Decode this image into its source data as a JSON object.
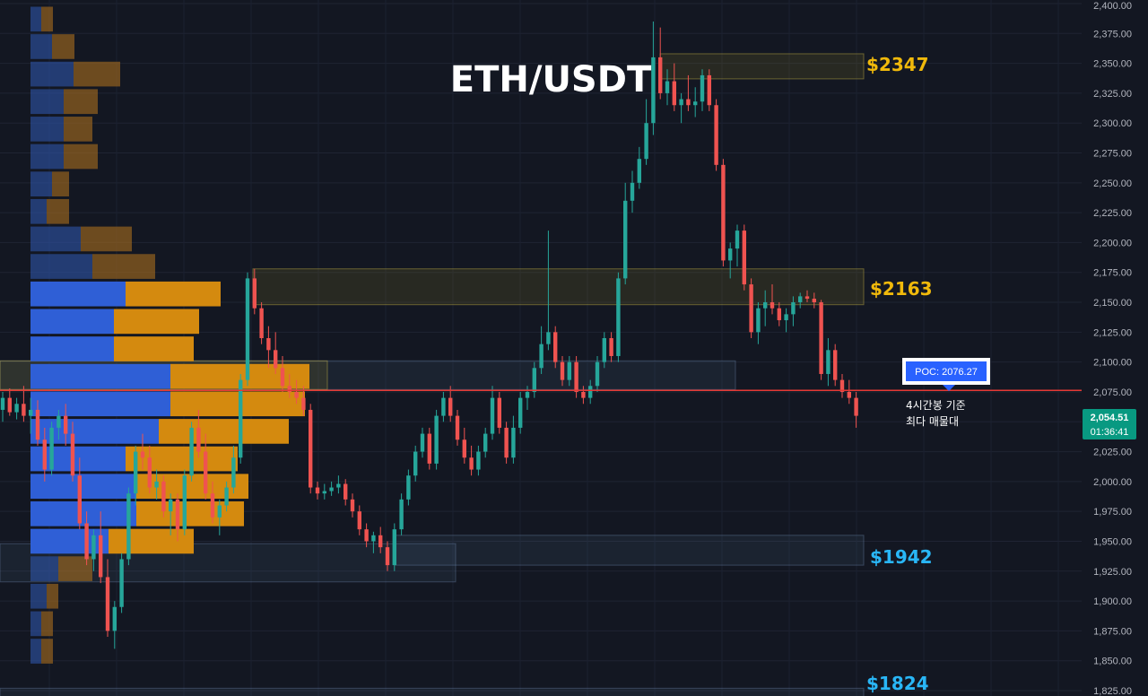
{
  "chart_data": {
    "type": "candlestick",
    "title": "ETH/USDT",
    "y_axis": {
      "min": 1825,
      "max": 2400,
      "ticks": [
        "2,400.00",
        "2,375.00",
        "2,350.00",
        "2,325.00",
        "2,300.00",
        "2,275.00",
        "2,250.00",
        "2,225.00",
        "2,200.00",
        "2,175.00",
        "2,150.00",
        "2,125.00",
        "2,100.00",
        "2,075.00",
        "2,050.00",
        "2,025.00",
        "2,000.00",
        "1,975.00",
        "1,950.00",
        "1,925.00",
        "1,900.00",
        "1,875.00",
        "1,850.00",
        "1,825.00"
      ]
    },
    "grid": true,
    "current_price": {
      "value": 2054.51,
      "label": "2,054.51",
      "countdown": "01:36:41",
      "color": "#089981"
    },
    "poc": {
      "value": 2076.27,
      "label": "POC: 2076.27",
      "note_line1": "4시간봉 기준",
      "note_line2": "최다 매물대",
      "line_color": "#e53935",
      "box_color": "#2962ff"
    },
    "levels": [
      {
        "label": "$2347",
        "price": 2347,
        "color": "#f0b90b"
      },
      {
        "label": "$2163",
        "price": 2163,
        "color": "#f0b90b"
      },
      {
        "label": "$1942",
        "price": 1942,
        "color": "#29b6f6"
      },
      {
        "label": "$1824",
        "price": 1824,
        "color": "#29b6f6"
      }
    ],
    "zones": [
      {
        "top": 2358,
        "bottom": 2337,
        "kind": "supply"
      },
      {
        "top": 2178,
        "bottom": 2148,
        "kind": "supply"
      },
      {
        "top": 2101,
        "bottom": 2077,
        "kind": "blue"
      },
      {
        "top": 2101,
        "bottom": 2077,
        "kind": "supply"
      },
      {
        "top": 1955,
        "bottom": 1930,
        "kind": "blue"
      },
      {
        "top": 1948,
        "bottom": 1916,
        "kind": "blue"
      },
      {
        "top": 1827,
        "bottom": 1815,
        "kind": "blue"
      }
    ],
    "volume_profile": [
      {
        "price": 2387,
        "buy": 12,
        "sell": 13
      },
      {
        "price": 2364,
        "buy": 24,
        "sell": 25
      },
      {
        "price": 2341,
        "buy": 48,
        "sell": 52
      },
      {
        "price": 2318,
        "buy": 37,
        "sell": 38
      },
      {
        "price": 2295,
        "buy": 37,
        "sell": 32
      },
      {
        "price": 2272,
        "buy": 37,
        "sell": 38
      },
      {
        "price": 2249,
        "buy": 24,
        "sell": 19
      },
      {
        "price": 2226,
        "buy": 18,
        "sell": 25
      },
      {
        "price": 2203,
        "buy": 56,
        "sell": 57
      },
      {
        "price": 2180,
        "buy": 69,
        "sell": 70
      },
      {
        "price": 2157,
        "buy": 106,
        "sell": 106
      },
      {
        "price": 2134,
        "buy": 93,
        "sell": 95
      },
      {
        "price": 2111,
        "buy": 93,
        "sell": 89
      },
      {
        "price": 2088,
        "buy": 156,
        "sell": 155
      },
      {
        "price": 2065,
        "buy": 156,
        "sell": 150
      },
      {
        "price": 2042,
        "buy": 143,
        "sell": 145
      },
      {
        "price": 2019,
        "buy": 106,
        "sell": 125
      },
      {
        "price": 1996,
        "buy": 118,
        "sell": 125
      },
      {
        "price": 1973,
        "buy": 118,
        "sell": 120
      },
      {
        "price": 1950,
        "buy": 87,
        "sell": 95
      },
      {
        "price": 1927,
        "buy": 31,
        "sell": 38
      },
      {
        "price": 1904,
        "buy": 18,
        "sell": 13
      },
      {
        "price": 1881,
        "buy": 12,
        "sell": 13
      },
      {
        "price": 1858,
        "buy": 12,
        "sell": 13
      }
    ],
    "candles": [
      [
        2060,
        2075,
        2050,
        2070
      ],
      [
        2070,
        2078,
        2055,
        2058
      ],
      [
        2058,
        2070,
        2052,
        2065
      ],
      [
        2065,
        2080,
        2050,
        2055
      ],
      [
        2055,
        2070,
        2040,
        2060
      ],
      [
        2060,
        2068,
        2030,
        2035
      ],
      [
        2035,
        2045,
        2000,
        2010
      ],
      [
        2010,
        2050,
        2005,
        2045
      ],
      [
        2045,
        2060,
        2035,
        2055
      ],
      [
        2055,
        2065,
        2030,
        2040
      ],
      [
        2040,
        2050,
        2000,
        2005
      ],
      [
        2005,
        2020,
        1960,
        1965
      ],
      [
        1965,
        1975,
        1930,
        1935
      ],
      [
        1935,
        1960,
        1925,
        1955
      ],
      [
        1955,
        1975,
        1915,
        1920
      ],
      [
        1920,
        1935,
        1870,
        1875
      ],
      [
        1875,
        1900,
        1860,
        1895
      ],
      [
        1895,
        1940,
        1890,
        1935
      ],
      [
        1935,
        1995,
        1930,
        1990
      ],
      [
        1990,
        2030,
        1980,
        2025
      ],
      [
        2025,
        2040,
        2010,
        2020
      ],
      [
        2020,
        2030,
        1990,
        1995
      ],
      [
        1995,
        2010,
        1985,
        2000
      ],
      [
        2000,
        2005,
        1970,
        1975
      ],
      [
        1975,
        1990,
        1955,
        1985
      ],
      [
        1985,
        1990,
        1950,
        1960
      ],
      [
        1960,
        2010,
        1955,
        2005
      ],
      [
        2005,
        2050,
        2000,
        2045
      ],
      [
        2045,
        2060,
        2020,
        2025
      ],
      [
        2025,
        2040,
        1985,
        1990
      ],
      [
        1990,
        2000,
        1965,
        1970
      ],
      [
        1970,
        1985,
        1955,
        1980
      ],
      [
        1980,
        2000,
        1975,
        1995
      ],
      [
        1995,
        2030,
        1990,
        2020
      ],
      [
        2020,
        2090,
        2015,
        2085
      ],
      [
        2085,
        2175,
        2080,
        2170
      ],
      [
        2170,
        2178,
        2140,
        2145
      ],
      [
        2145,
        2150,
        2115,
        2120
      ],
      [
        2120,
        2130,
        2095,
        2110
      ],
      [
        2110,
        2125,
        2090,
        2095
      ],
      [
        2095,
        2105,
        2075,
        2080
      ],
      [
        2080,
        2090,
        2070,
        2075
      ],
      [
        2075,
        2085,
        2065,
        2070
      ],
      [
        2070,
        2080,
        2055,
        2060
      ],
      [
        2060,
        2065,
        1990,
        1995
      ],
      [
        1995,
        2000,
        1985,
        1990
      ],
      [
        1990,
        1998,
        1985,
        1992
      ],
      [
        1992,
        2000,
        1988,
        1995
      ],
      [
        1995,
        2005,
        1990,
        1998
      ],
      [
        1998,
        2002,
        1980,
        1985
      ],
      [
        1985,
        1990,
        1970,
        1975
      ],
      [
        1975,
        1980,
        1955,
        1960
      ],
      [
        1960,
        1965,
        1945,
        1950
      ],
      [
        1950,
        1958,
        1940,
        1955
      ],
      [
        1955,
        1962,
        1940,
        1945
      ],
      [
        1945,
        1950,
        1925,
        1930
      ],
      [
        1930,
        1965,
        1925,
        1960
      ],
      [
        1960,
        1990,
        1955,
        1985
      ],
      [
        1985,
        2010,
        1980,
        2005
      ],
      [
        2005,
        2030,
        2000,
        2025
      ],
      [
        2025,
        2045,
        2020,
        2040
      ],
      [
        2040,
        2045,
        2010,
        2015
      ],
      [
        2015,
        2060,
        2010,
        2055
      ],
      [
        2055,
        2075,
        2050,
        2070
      ],
      [
        2070,
        2080,
        2050,
        2055
      ],
      [
        2055,
        2060,
        2030,
        2035
      ],
      [
        2035,
        2045,
        2015,
        2020
      ],
      [
        2020,
        2030,
        2005,
        2010
      ],
      [
        2010,
        2030,
        2005,
        2025
      ],
      [
        2025,
        2045,
        2020,
        2040
      ],
      [
        2040,
        2080,
        2035,
        2070
      ],
      [
        2070,
        2075,
        2040,
        2045
      ],
      [
        2045,
        2050,
        2015,
        2020
      ],
      [
        2020,
        2055,
        2015,
        2045
      ],
      [
        2045,
        2075,
        2040,
        2070
      ],
      [
        2070,
        2080,
        2060,
        2075
      ],
      [
        2075,
        2100,
        2070,
        2095
      ],
      [
        2095,
        2130,
        2090,
        2115
      ],
      [
        2115,
        2210,
        2110,
        2125
      ],
      [
        2125,
        2130,
        2095,
        2100
      ],
      [
        2100,
        2105,
        2080,
        2085
      ],
      [
        2085,
        2105,
        2080,
        2100
      ],
      [
        2100,
        2105,
        2070,
        2075
      ],
      [
        2075,
        2080,
        2065,
        2070
      ],
      [
        2070,
        2085,
        2065,
        2080
      ],
      [
        2080,
        2105,
        2075,
        2100
      ],
      [
        2100,
        2125,
        2095,
        2120
      ],
      [
        2120,
        2125,
        2100,
        2105
      ],
      [
        2105,
        2175,
        2100,
        2170
      ],
      [
        2170,
        2250,
        2165,
        2235
      ],
      [
        2235,
        2260,
        2225,
        2250
      ],
      [
        2250,
        2280,
        2245,
        2270
      ],
      [
        2270,
        2320,
        2265,
        2300
      ],
      [
        2300,
        2385,
        2290,
        2355
      ],
      [
        2355,
        2380,
        2320,
        2325
      ],
      [
        2325,
        2345,
        2315,
        2335
      ],
      [
        2335,
        2350,
        2310,
        2315
      ],
      [
        2315,
        2325,
        2300,
        2320
      ],
      [
        2320,
        2340,
        2310,
        2315
      ],
      [
        2315,
        2330,
        2305,
        2318
      ],
      [
        2318,
        2345,
        2310,
        2340
      ],
      [
        2340,
        2345,
        2310,
        2315
      ],
      [
        2315,
        2320,
        2260,
        2265
      ],
      [
        2265,
        2270,
        2180,
        2185
      ],
      [
        2185,
        2200,
        2170,
        2195
      ],
      [
        2195,
        2215,
        2180,
        2210
      ],
      [
        2210,
        2215,
        2160,
        2165
      ],
      [
        2165,
        2170,
        2120,
        2125
      ],
      [
        2125,
        2150,
        2115,
        2145
      ],
      [
        2145,
        2160,
        2130,
        2150
      ],
      [
        2150,
        2165,
        2140,
        2145
      ],
      [
        2145,
        2150,
        2130,
        2135
      ],
      [
        2135,
        2145,
        2125,
        2140
      ],
      [
        2140,
        2155,
        2130,
        2150
      ],
      [
        2150,
        2158,
        2145,
        2155
      ],
      [
        2155,
        2160,
        2150,
        2153
      ],
      [
        2153,
        2158,
        2145,
        2150
      ],
      [
        2150,
        2152,
        2085,
        2090
      ],
      [
        2090,
        2120,
        2080,
        2110
      ],
      [
        2110,
        2115,
        2080,
        2085
      ],
      [
        2085,
        2090,
        2070,
        2075
      ],
      [
        2075,
        2085,
        2065,
        2070
      ],
      [
        2070,
        2075,
        2045,
        2055
      ]
    ]
  }
}
